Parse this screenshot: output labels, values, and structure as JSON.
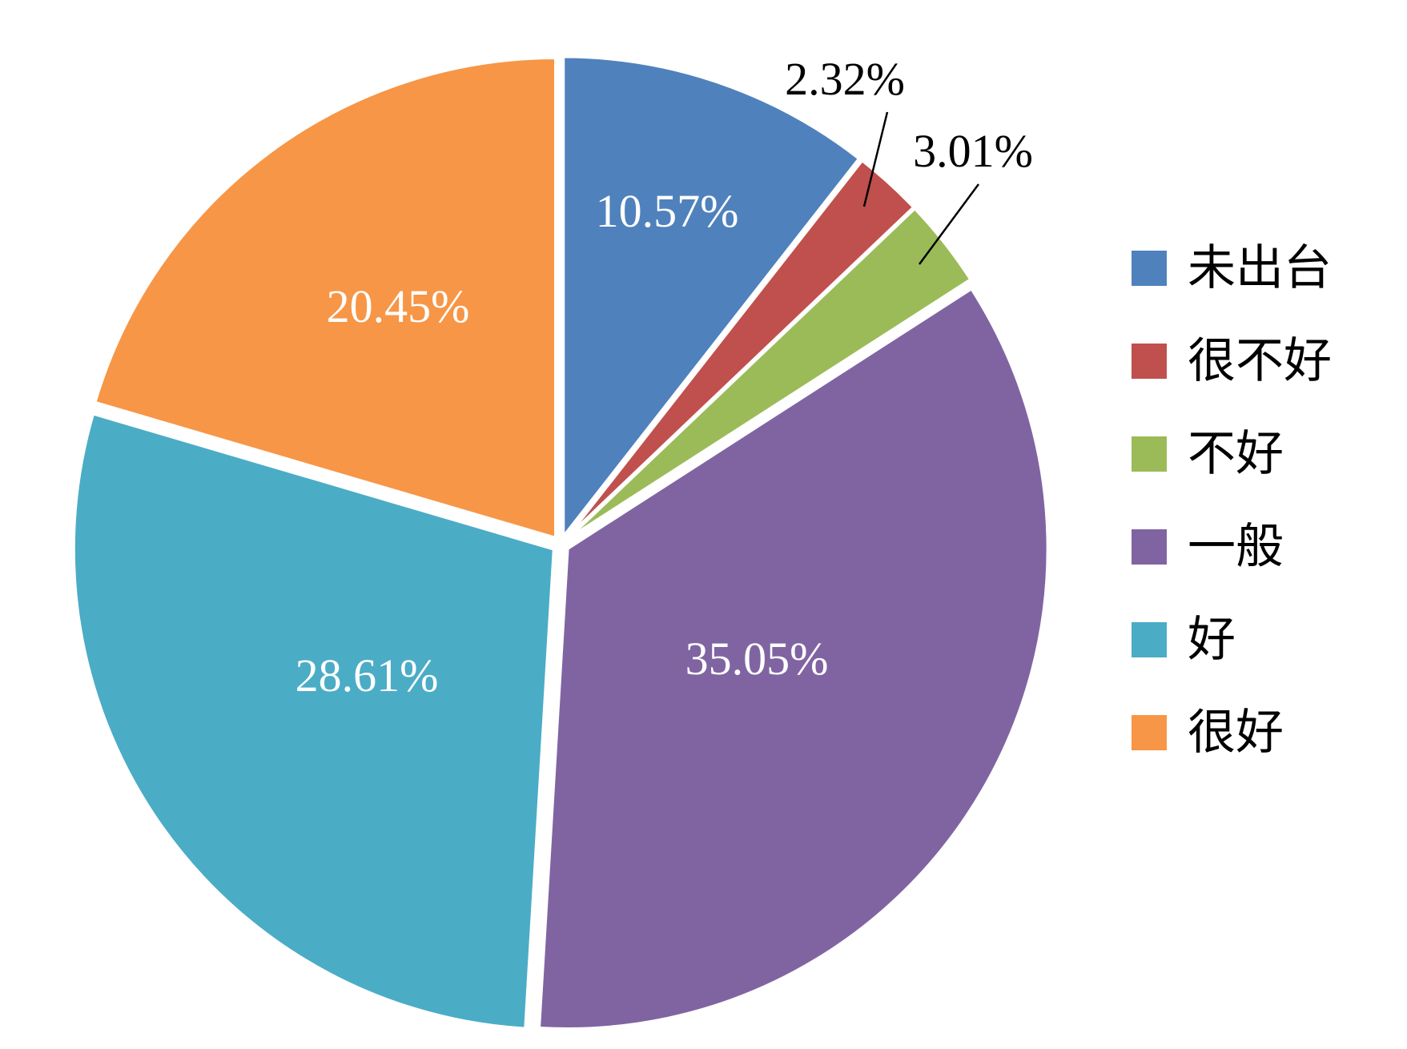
{
  "chart_data": {
    "type": "pie",
    "title": "",
    "start_angle_deg": 0,
    "direction": "clockwise",
    "legend": {
      "position": "right"
    },
    "slices": [
      {
        "label": "未出台",
        "value": 10.57,
        "display": "10.57%",
        "color": "#4f81bd",
        "label_placement": "inside"
      },
      {
        "label": "很不好",
        "value": 2.32,
        "display": "2.32%",
        "color": "#c0504d",
        "label_placement": "outside"
      },
      {
        "label": "不好",
        "value": 3.01,
        "display": "3.01%",
        "color": "#9bbb59",
        "label_placement": "outside"
      },
      {
        "label": "一般",
        "value": 35.05,
        "display": "35.05%",
        "color": "#8064a2",
        "label_placement": "inside"
      },
      {
        "label": "好",
        "value": 28.61,
        "display": "28.61%",
        "color": "#4bacc6",
        "label_placement": "inside"
      },
      {
        "label": "很好",
        "value": 20.45,
        "display": "20.45%",
        "color": "#f79646",
        "label_placement": "inside"
      }
    ]
  }
}
